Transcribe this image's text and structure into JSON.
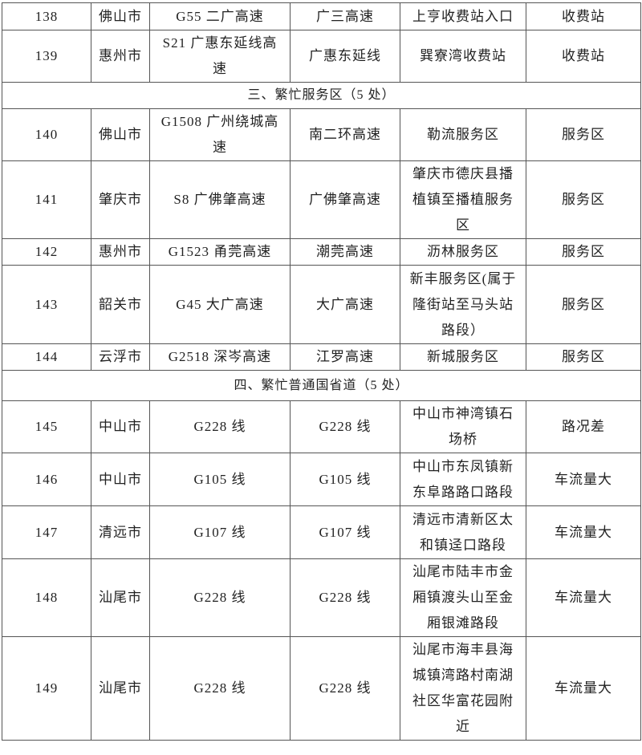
{
  "rows": [
    {
      "type": "row",
      "no": "138",
      "city": "佛山市",
      "road": "G55 二广高速",
      "section": "广三高速",
      "location": "上亨收费站入口",
      "category": "收费站"
    },
    {
      "type": "row",
      "no": "139",
      "city": "惠州市",
      "road": "S21 广惠东延线高\n速",
      "section": "广惠东延线",
      "location": "巽寮湾收费站",
      "category": "收费站"
    },
    {
      "type": "section",
      "title": "三、繁忙服务区（5 处）"
    },
    {
      "type": "row",
      "no": "140",
      "city": "佛山市",
      "road": "G1508 广州绕城高\n速",
      "section": "南二环高速",
      "location": "勒流服务区",
      "category": "服务区"
    },
    {
      "type": "row",
      "no": "141",
      "city": "肇庆市",
      "road": "S8 广佛肇高速",
      "section": "广佛肇高速",
      "location": "肇庆市德庆县播\n植镇至播植服务\n区",
      "category": "服务区"
    },
    {
      "type": "row",
      "no": "142",
      "city": "惠州市",
      "road": "G1523 甬莞高速",
      "section": "潮莞高速",
      "location": "沥林服务区",
      "category": "服务区"
    },
    {
      "type": "row",
      "no": "143",
      "city": "韶关市",
      "road": "G45 大广高速",
      "section": "大广高速",
      "location": "新丰服务区(属于\n隆街站至马头站\n路段）",
      "category": "服务区"
    },
    {
      "type": "row",
      "no": "144",
      "city": "云浮市",
      "road": "G2518 深岑高速",
      "section": "江罗高速",
      "location": "新城服务区",
      "category": "服务区"
    },
    {
      "type": "section",
      "title": "四、繁忙普通国省道（5 处）"
    },
    {
      "type": "row",
      "no": "145",
      "city": "中山市",
      "road": "G228 线",
      "section": "G228 线",
      "location": "中山市神湾镇石\n场桥",
      "category": "路况差"
    },
    {
      "type": "row",
      "no": "146",
      "city": "中山市",
      "road": "G105 线",
      "section": "G105 线",
      "location": "中山市东凤镇新\n东阜路路口路段",
      "category": "车流量大"
    },
    {
      "type": "row",
      "no": "147",
      "city": "清远市",
      "road": "G107 线",
      "section": "G107 线",
      "location": "清远市清新区太\n和镇迳口路段",
      "category": "车流量大"
    },
    {
      "type": "row",
      "no": "148",
      "city": "汕尾市",
      "road": "G228 线",
      "section": "G228 线",
      "location": "汕尾市陆丰市金\n厢镇渡头山至金\n厢银滩路段",
      "category": "车流量大"
    },
    {
      "type": "row",
      "no": "149",
      "city": "汕尾市",
      "road": "G228 线",
      "section": "G228 线",
      "location": "汕尾市海丰县海\n城镇湾路村南湖\n社区华富花园附\n近",
      "category": "车流量大"
    }
  ]
}
